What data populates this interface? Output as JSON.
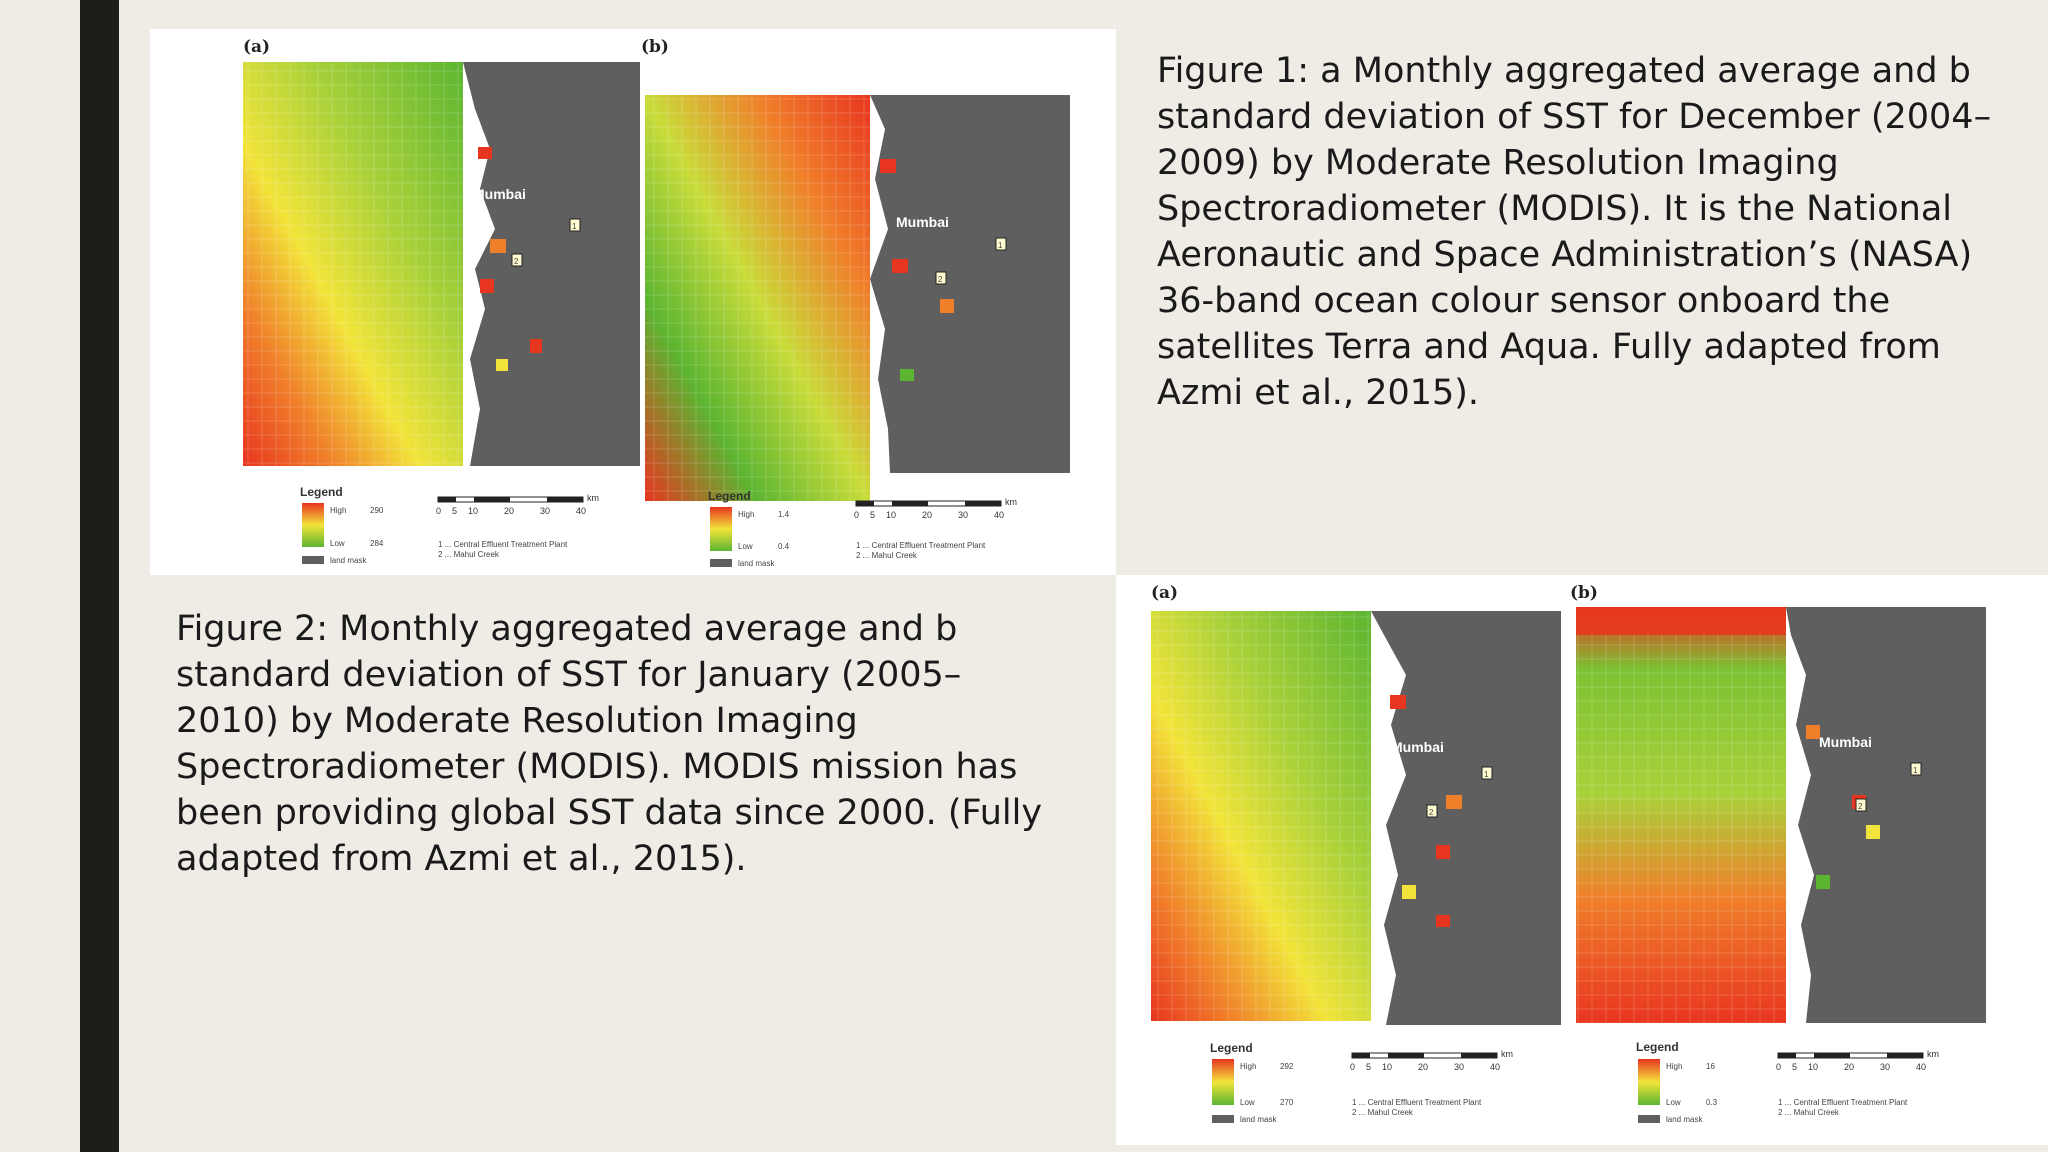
{
  "figure1": {
    "caption": "Figure 1: a Monthly aggregated average and b standard deviation of SST for December (2004–2009) by Moderate Resolution Imaging Spectroradiometer (MODIS). It is the National Aeronautic and Space Administration’s (NASA) 36-band ocean colour sensor onboard the satellites Terra and Aqua. Fully adapted from Azmi et al., 2015).",
    "panels": [
      {
        "label": "(a)",
        "city": "Mumbai",
        "marker1": "1",
        "marker2": "2",
        "legend_title": "Legend",
        "high_label": "High",
        "high_value": "290",
        "low_label": "Low",
        "low_value": "284",
        "mask_label": "land mask"
      },
      {
        "label": "(b)",
        "city": "Mumbai",
        "marker1": "1",
        "marker2": "2",
        "legend_title": "Legend",
        "high_label": "High",
        "high_value": "1.4",
        "low_label": "Low",
        "low_value": "0.4",
        "mask_label": "land mask"
      }
    ]
  },
  "figure2": {
    "caption": "Figure 2: Monthly aggregated average and b standard deviation of SST for January (2005–2010) by Moderate Resolution Imaging Spectroradiometer (MODIS). MODIS mission has been providing global SST data since 2000. (Fully adapted from Azmi et al., 2015).",
    "panels": [
      {
        "label": "(a)",
        "city": "Mumbai",
        "marker1": "1",
        "marker2": "2",
        "legend_title": "Legend",
        "high_label": "High",
        "high_value": "292",
        "low_label": "Low",
        "low_value": "270",
        "mask_label": "land mask"
      },
      {
        "label": "(b)",
        "city": "Mumbai",
        "marker1": "1",
        "marker2": "2",
        "legend_title": "Legend",
        "high_label": "High",
        "high_value": "16",
        "low_label": "Low",
        "low_value": "0.3",
        "mask_label": "land mask"
      }
    ]
  },
  "scale": {
    "unit": "km",
    "ticks": [
      "0",
      "5",
      "10",
      "20",
      "30",
      "40"
    ]
  },
  "sites": {
    "site1": "1 ... Central Effluent Treatment Plant",
    "site2": "2 ... Mahul Creek"
  },
  "colors": {
    "sidebar": "#1d1e18",
    "background": "#efebe5",
    "land": "#5f5f5f",
    "high": "#e8351f",
    "mid": "#f2e43a",
    "low": "#5cb531"
  }
}
